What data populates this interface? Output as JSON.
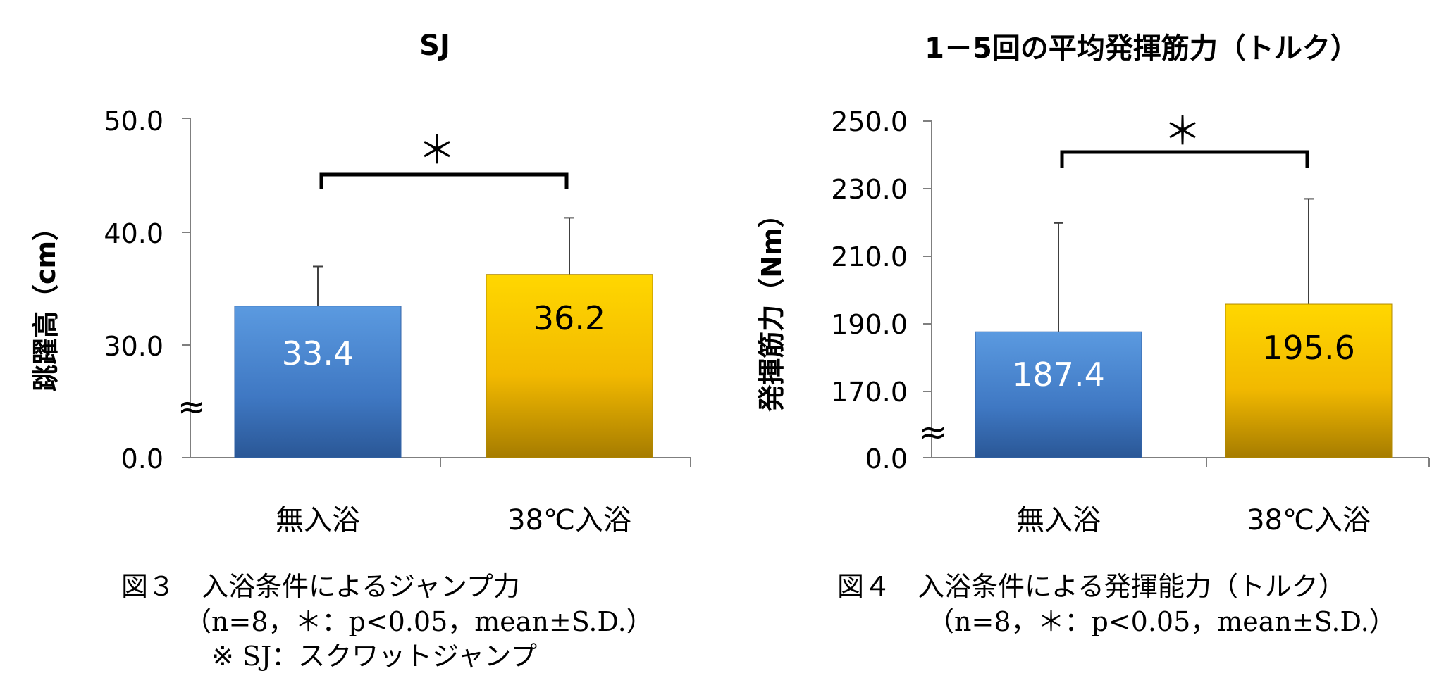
{
  "chart_data": [
    {
      "type": "bar",
      "title": "SJ",
      "ylabel": "跳躍高（cm）",
      "xlabel": "",
      "categories": [
        "無入浴",
        "38℃入浴"
      ],
      "values": [
        33.4,
        36.2
      ],
      "value_labels": [
        "33.4",
        "36.2"
      ],
      "error": [
        3.5,
        5.0
      ],
      "yticks": [
        "0.0",
        "30.0",
        "40.0",
        "50.0"
      ],
      "ylim": [
        20,
        50
      ],
      "axis_break": "≈",
      "significance": "＊",
      "grid": false,
      "colors": [
        "#4a86d0",
        "#f2bd00"
      ]
    },
    {
      "type": "bar",
      "title": "1－5回の平均発揮筋力（トルク）",
      "ylabel": "発揮筋力（Nm）",
      "xlabel": "",
      "categories": [
        "無入浴",
        "38℃入浴"
      ],
      "values": [
        187.4,
        195.6
      ],
      "value_labels": [
        "187.4",
        "195.6"
      ],
      "error": [
        32.3,
        31.3
      ],
      "yticks": [
        "0.0",
        "170.0",
        "190.0",
        "210.0",
        "230.0",
        "250.0"
      ],
      "ylim": [
        150,
        250
      ],
      "axis_break": "≈",
      "significance": "＊",
      "grid": false,
      "colors": [
        "#4a86d0",
        "#f2bd00"
      ]
    }
  ],
  "captions": {
    "fig3_line1": "図３　入浴条件によるジャンプ力",
    "fig3_line2": "（n=8，＊：p<0.05，mean±S.D.）",
    "fig3_line3": "※ SJ：スクワットジャンプ",
    "fig4_line1": "図４　入浴条件による発揮能力（トルク）",
    "fig4_line2": "（n=8，＊：p<0.05，mean±S.D.）"
  }
}
